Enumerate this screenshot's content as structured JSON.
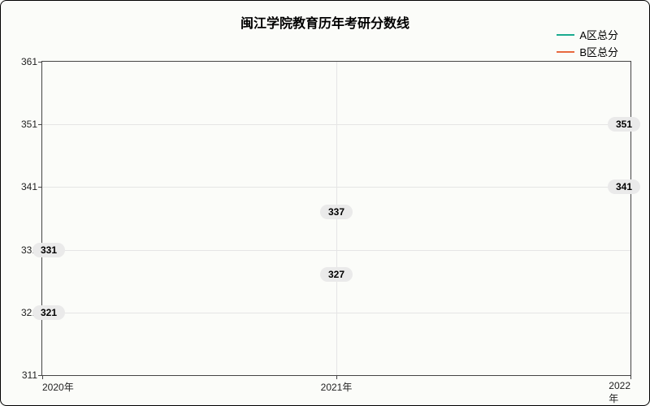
{
  "chart": {
    "type": "line",
    "title": "闽江学院教育历年考研分数线",
    "title_fontsize": 16,
    "background_color": "#fbfcf9",
    "border_color": "#000000",
    "grid_color": "#e5e5e5",
    "axis_color": "#444444",
    "tick_label_fontsize": 12,
    "y_axis": {
      "min": 311,
      "max": 361,
      "step": 10,
      "ticks": [
        311,
        321,
        331,
        341,
        351,
        361
      ]
    },
    "x_axis": {
      "labels": [
        "2020年",
        "2021年",
        "2022年"
      ],
      "positions": [
        0,
        0.5,
        1
      ]
    },
    "legend": {
      "position": "top-right",
      "fontsize": 13,
      "items": [
        {
          "label": "A区总分",
          "color": "#1aab8f"
        },
        {
          "label": "B区总分",
          "color": "#e8693f"
        }
      ]
    },
    "series": [
      {
        "name": "A区总分",
        "color": "#1aab8f",
        "line_width": 1.8,
        "values": [
          331,
          337,
          351
        ]
      },
      {
        "name": "B区总分",
        "color": "#e8693f",
        "line_width": 1.8,
        "values": [
          321,
          327,
          341
        ]
      }
    ],
    "data_label": {
      "background": "#eaeaea",
      "fontsize": 12,
      "font_weight": "bold",
      "border_radius": 10
    }
  }
}
